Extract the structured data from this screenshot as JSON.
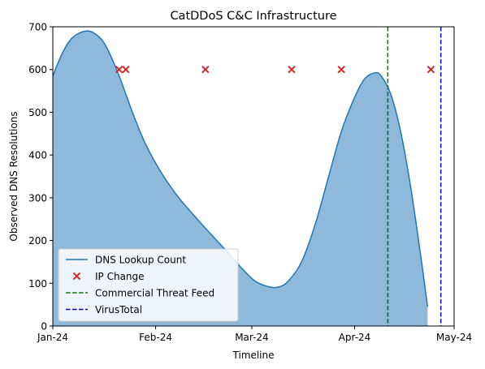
{
  "chart_data": {
    "type": "area",
    "title": "CatDDoS C&C Infrastructure",
    "xlabel": "Timeline",
    "ylabel": "Observed DNS Resolutions",
    "xlim": [
      "2024-01-01",
      "2024-05-01"
    ],
    "ylim": [
      0,
      700
    ],
    "x_ticks": [
      {
        "date": "2024-01-01",
        "label": "Jan-24"
      },
      {
        "date": "2024-02-01",
        "label": "Feb-24"
      },
      {
        "date": "2024-03-01",
        "label": "Mar-24"
      },
      {
        "date": "2024-04-01",
        "label": "Apr-24"
      },
      {
        "date": "2024-05-01",
        "label": "May-24"
      }
    ],
    "y_ticks": [
      0,
      100,
      200,
      300,
      400,
      500,
      600,
      700
    ],
    "grid": false,
    "legend_position": "lower-left",
    "series": [
      {
        "name": "DNS Lookup Count",
        "kind": "area",
        "color": "#1f77b4",
        "fill_color": "#8fb9db",
        "points": [
          {
            "x": "2024-01-01",
            "y": 585
          },
          {
            "x": "2024-01-04",
            "y": 640
          },
          {
            "x": "2024-01-07",
            "y": 675
          },
          {
            "x": "2024-01-11",
            "y": 690
          },
          {
            "x": "2024-01-14",
            "y": 682
          },
          {
            "x": "2024-01-17",
            "y": 655
          },
          {
            "x": "2024-01-21",
            "y": 585
          },
          {
            "x": "2024-01-25",
            "y": 500
          },
          {
            "x": "2024-01-29",
            "y": 425
          },
          {
            "x": "2024-02-03",
            "y": 355
          },
          {
            "x": "2024-02-08",
            "y": 300
          },
          {
            "x": "2024-02-13",
            "y": 255
          },
          {
            "x": "2024-02-18",
            "y": 212
          },
          {
            "x": "2024-02-23",
            "y": 170
          },
          {
            "x": "2024-02-27",
            "y": 135
          },
          {
            "x": "2024-03-02",
            "y": 105
          },
          {
            "x": "2024-03-06",
            "y": 92
          },
          {
            "x": "2024-03-09",
            "y": 91
          },
          {
            "x": "2024-03-12",
            "y": 105
          },
          {
            "x": "2024-03-16",
            "y": 150
          },
          {
            "x": "2024-03-20",
            "y": 235
          },
          {
            "x": "2024-03-24",
            "y": 345
          },
          {
            "x": "2024-03-28",
            "y": 455
          },
          {
            "x": "2024-04-01",
            "y": 535
          },
          {
            "x": "2024-04-04",
            "y": 578
          },
          {
            "x": "2024-04-07",
            "y": 592
          },
          {
            "x": "2024-04-09",
            "y": 585
          },
          {
            "x": "2024-04-12",
            "y": 540
          },
          {
            "x": "2024-04-15",
            "y": 450
          },
          {
            "x": "2024-04-18",
            "y": 320
          },
          {
            "x": "2024-04-21",
            "y": 160
          },
          {
            "x": "2024-04-23",
            "y": 45
          }
        ]
      },
      {
        "name": "IP Change",
        "kind": "scatter",
        "color": "#d62728",
        "marker": "x",
        "points": [
          {
            "x": "2024-01-21",
            "y": 600
          },
          {
            "x": "2024-01-23",
            "y": 600
          },
          {
            "x": "2024-02-16",
            "y": 600
          },
          {
            "x": "2024-03-13",
            "y": 600
          },
          {
            "x": "2024-03-28",
            "y": 600
          },
          {
            "x": "2024-04-24",
            "y": 600
          }
        ]
      },
      {
        "name": "Commercial Threat Feed",
        "kind": "vline",
        "color": "#008000",
        "x": "2024-04-11"
      },
      {
        "name": "VirusTotal",
        "kind": "vline",
        "color": "#0000cc",
        "x": "2024-04-27"
      }
    ]
  }
}
